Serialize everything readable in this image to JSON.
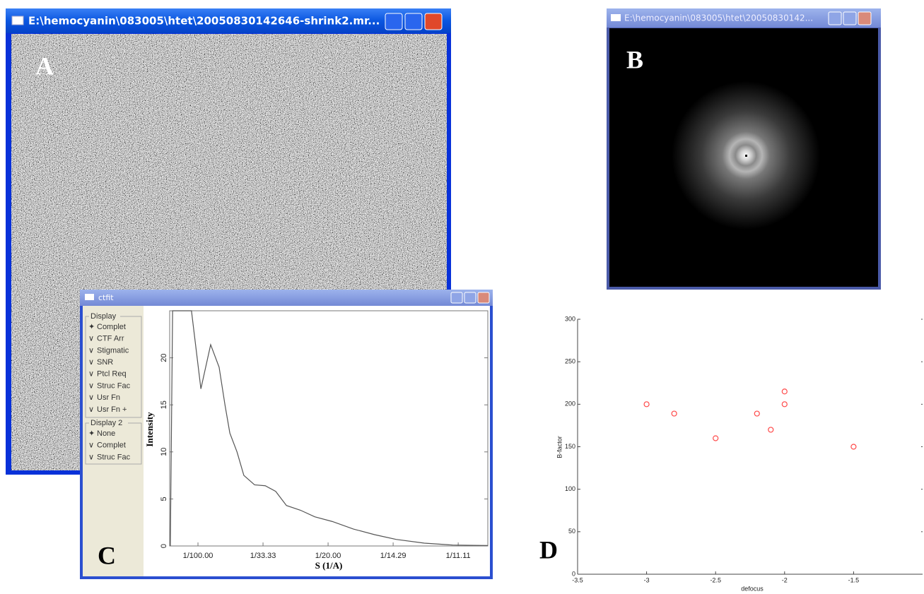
{
  "panels": {
    "a": "A",
    "b": "B",
    "c": "C",
    "d": "D"
  },
  "windows": {
    "micrograph": {
      "title": "E:\\hemocyanin\\083005\\htet\\20050830142646-shrink2.mr..."
    },
    "power_spectrum": {
      "title": "E:\\hemocyanin\\083005\\htet\\20050830142..."
    },
    "ctfit": {
      "title": "ctfit",
      "display": {
        "label": "Display",
        "options": [
          "Complet",
          "CTF Arr",
          "Stigmatic",
          "SNR",
          "Ptcl Req",
          "Struc Fac",
          "Usr Fn",
          "Usr Fn +"
        ],
        "selected": 0
      },
      "display2": {
        "label": "Display 2",
        "options": [
          "None",
          "Complet",
          "Struc Fac"
        ],
        "selected": 0
      }
    }
  },
  "chart_data": [
    {
      "type": "line",
      "x_label": "S (1/A)",
      "y_label": "Intensity",
      "color": "#555555",
      "x": [
        0.0015,
        0.0022,
        0.008,
        0.0109,
        0.0139,
        0.0165,
        0.0183,
        0.0198,
        0.022,
        0.0241,
        0.0274,
        0.0307,
        0.0339,
        0.0372,
        0.0415,
        0.0459,
        0.0513,
        0.0578,
        0.0643,
        0.0709,
        0.0796,
        0.0883,
        0.0991
      ],
      "values": [
        0,
        25,
        25,
        16.7,
        21.4,
        19,
        15,
        12,
        10,
        7.5,
        6.5,
        6.4,
        5.8,
        4.3,
        3.8,
        3.1,
        2.6,
        1.8,
        1.2,
        0.7,
        0.3,
        0.1,
        0.05
      ],
      "xlim": [
        0.0013,
        0.0991
      ],
      "ylim": [
        0,
        25
      ],
      "xticks": [
        {
          "value": 0.01,
          "label": "1/100.00"
        },
        {
          "value": 0.03,
          "label": "1/33.33"
        },
        {
          "value": 0.05,
          "label": "1/20.00"
        },
        {
          "value": 0.07,
          "label": "1/14.29"
        },
        {
          "value": 0.09,
          "label": "1/11.11"
        }
      ],
      "yticks": [
        0,
        5,
        10,
        15,
        20
      ]
    },
    {
      "type": "scatter",
      "x_label": "defocus",
      "y_label": "B-factor",
      "color": "#ff4a4a",
      "x": [
        -3,
        -2.8,
        -2.5,
        -2.2,
        -2.1,
        -2,
        -2,
        -1.5
      ],
      "values": [
        200,
        189,
        160,
        189,
        170,
        215,
        200,
        150
      ],
      "xlim": [
        -3.5,
        -1
      ],
      "ylim": [
        0,
        300
      ],
      "xticks": [
        -3.5,
        -3,
        -2.5,
        -2,
        -1.5
      ],
      "yticks": [
        0,
        50,
        100,
        150,
        200,
        250,
        300
      ]
    }
  ]
}
